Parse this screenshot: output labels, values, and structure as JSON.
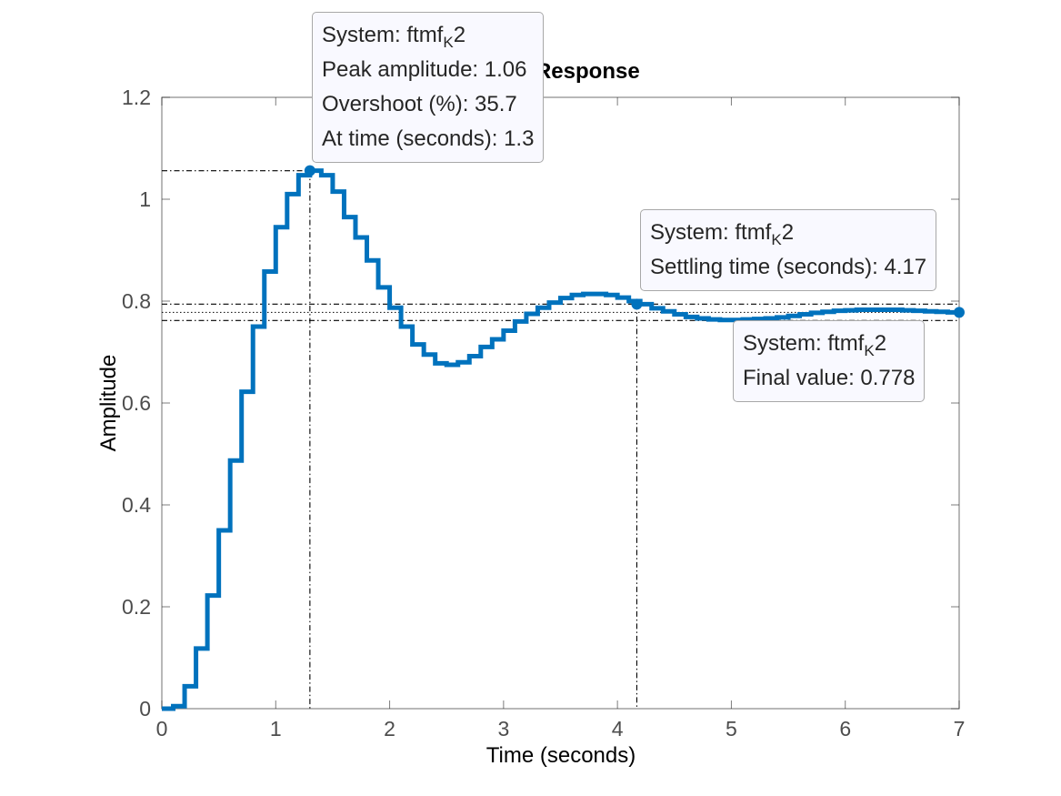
{
  "chart_data": {
    "type": "line",
    "step": true,
    "title": "Step Response",
    "xlabel": "Time (seconds)",
    "ylabel": "Amplitude",
    "xlim": [
      0,
      7
    ],
    "ylim": [
      0,
      1.2
    ],
    "xticks": [
      "0",
      "1",
      "2",
      "3",
      "4",
      "5",
      "6",
      "7"
    ],
    "yticks": [
      "0",
      "0.2",
      "0.4",
      "0.6",
      "0.8",
      "1",
      "1.2"
    ],
    "grid": false,
    "sample_time": 0.1,
    "series": [
      {
        "name": "ftmfK2",
        "color": "#0072BD",
        "x": [
          0,
          0.1,
          0.2,
          0.3,
          0.4,
          0.5,
          0.6,
          0.7,
          0.8,
          0.9,
          1.0,
          1.1,
          1.2,
          1.3,
          1.4,
          1.5,
          1.6,
          1.7,
          1.8,
          1.9,
          2.0,
          2.1,
          2.2,
          2.3,
          2.4,
          2.5,
          2.6,
          2.7,
          2.8,
          2.9,
          3.0,
          3.1,
          3.2,
          3.3,
          3.4,
          3.5,
          3.6,
          3.7,
          3.8,
          3.9,
          4.0,
          4.1,
          4.2,
          4.3,
          4.4,
          4.5,
          4.6,
          4.7,
          4.8,
          4.9,
          5.0,
          5.1,
          5.2,
          5.3,
          5.4,
          5.5,
          5.6,
          5.7,
          5.8,
          5.9,
          6.0,
          6.1,
          6.2,
          6.3,
          6.4,
          6.5,
          6.6,
          6.7,
          6.8,
          6.9,
          7.0
        ],
        "y": [
          0,
          0.005,
          0.044,
          0.118,
          0.222,
          0.35,
          0.487,
          0.622,
          0.75,
          0.858,
          0.945,
          1.01,
          1.047,
          1.056,
          1.047,
          1.015,
          0.965,
          0.925,
          0.88,
          0.827,
          0.787,
          0.75,
          0.715,
          0.695,
          0.678,
          0.675,
          0.68,
          0.692,
          0.71,
          0.725,
          0.742,
          0.76,
          0.775,
          0.787,
          0.797,
          0.806,
          0.812,
          0.814,
          0.814,
          0.812,
          0.807,
          0.8,
          0.794,
          0.786,
          0.78,
          0.774,
          0.769,
          0.766,
          0.764,
          0.763,
          0.763,
          0.764,
          0.765,
          0.766,
          0.768,
          0.771,
          0.774,
          0.777,
          0.779,
          0.781,
          0.782,
          0.783,
          0.783,
          0.783,
          0.783,
          0.782,
          0.781,
          0.78,
          0.779,
          0.778,
          0.778
        ]
      }
    ],
    "characteristics": {
      "peak": {
        "x": 1.3,
        "y": 1.056
      },
      "settling": {
        "x": 4.17,
        "y": 0.794
      },
      "final": {
        "x": 7.0,
        "y": 0.778
      },
      "settling_band": [
        0.762,
        0.794
      ]
    },
    "datatips": [
      {
        "system_prefix": "System: ftmf",
        "system_sub": "K",
        "system_suffix": "2",
        "lines": [
          "Peak amplitude: 1.06",
          "Overshoot (%): 35.7",
          "At time (seconds): 1.3"
        ]
      },
      {
        "system_prefix": "System: ftmf",
        "system_sub": "K",
        "system_suffix": "2",
        "lines": [
          "Settling time (seconds): 4.17"
        ]
      },
      {
        "system_prefix": "System: ftmf",
        "system_sub": "K",
        "system_suffix": "2",
        "lines": [
          "Final value: 0.778"
        ]
      }
    ]
  }
}
